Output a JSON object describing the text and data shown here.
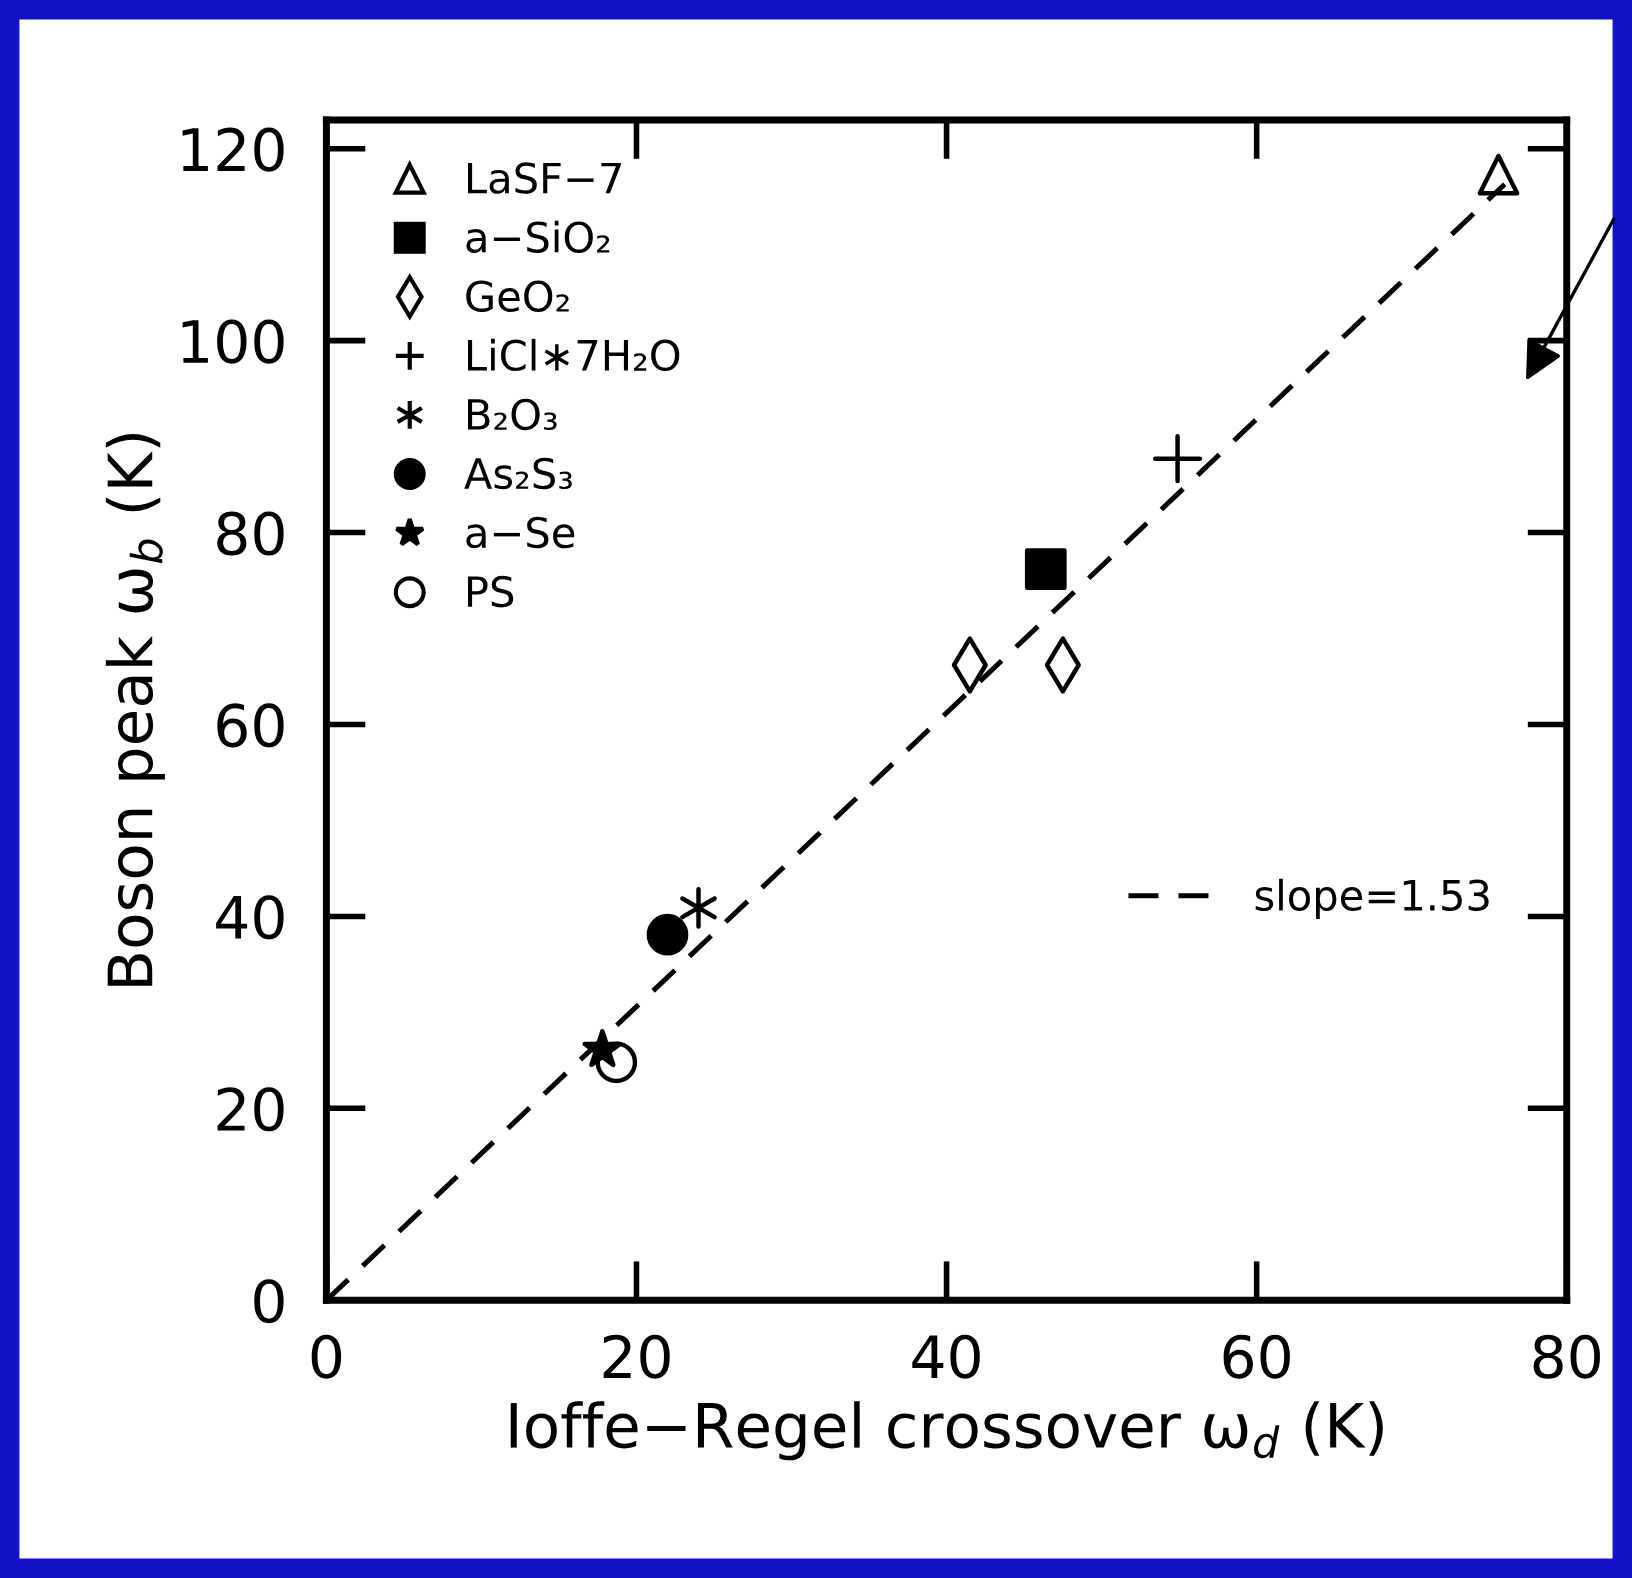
{
  "chart_data": {
    "type": "scatter",
    "xlabel": "Ioffe−Regel crossover ω$_{d}$ (K)",
    "ylabel": "Boson peak ω$_{b}$ (K)",
    "xlim": [
      0,
      80
    ],
    "ylim": [
      0,
      123
    ],
    "xticks": [
      0,
      20,
      40,
      60,
      80
    ],
    "yticks": [
      0,
      20,
      40,
      60,
      80,
      100,
      120
    ],
    "grid": false,
    "legend": "top left",
    "series": [
      {
        "name": "LaSF−7",
        "color": "#000000",
        "marker": "triangle",
        "x": [
          75.6
        ],
        "values": [
          117.3
        ]
      },
      {
        "name": "a−SiO₂",
        "color": "#000000",
        "marker": "square",
        "x": [
          46.4
        ],
        "values": [
          76.2
        ]
      },
      {
        "name": "GeO₂",
        "color": "#000000",
        "marker": "diamond",
        "x": [
          41.5,
          47.5
        ],
        "values": [
          66.2,
          66.2
        ]
      },
      {
        "name": "LiCl∗7H₂O",
        "color": "#000000",
        "marker": "cross",
        "x": [
          54.9
        ],
        "values": [
          87.7
        ]
      },
      {
        "name": "B₂O₃",
        "color": "#000000",
        "marker": "cross",
        "x": [
          24.0
        ],
        "values": [
          40.9
        ]
      },
      {
        "name": "As₂S₃",
        "color": "#000000",
        "marker": "circle",
        "x": [
          22.0
        ],
        "values": [
          38.1
        ]
      },
      {
        "name": "a−Se",
        "color": "#000000",
        "marker": "star",
        "x": [
          17.8
        ],
        "values": [
          26.1
        ]
      },
      {
        "name": "PS",
        "color": "#000000",
        "marker": "circle",
        "x": [
          18.7
        ],
        "values": [
          24.8
        ]
      },
      {
        "name": "slope=1.53",
        "type": "line",
        "color": "#000000",
        "line_style": "dashed",
        "x": [
          0,
          76
        ],
        "values": [
          0,
          116.3
        ]
      }
    ]
  }
}
